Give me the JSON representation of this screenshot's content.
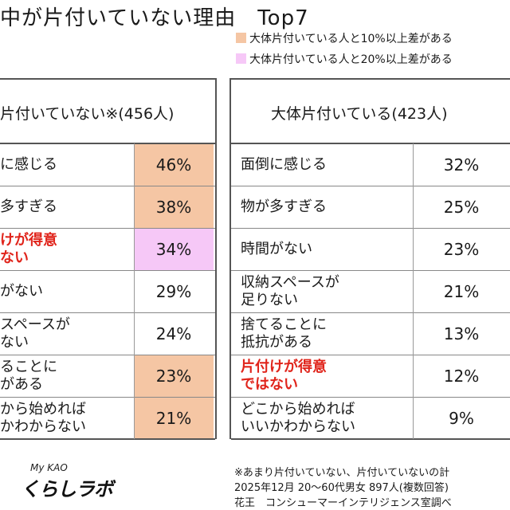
{
  "title": "中が片付いていない理由　Top7",
  "legend": [
    {
      "label": "大体片付いている人と10%以上差がある",
      "color": "#f5c6a4"
    },
    {
      "label": "大体片付いている人と20%以上差がある",
      "color": "#f6c8f7"
    }
  ],
  "chart_data": {
    "type": "table",
    "columns": [
      {
        "header": "片付いていない※(456人)",
        "rows": [
          {
            "reason": [
              "に感じる"
            ],
            "value": "46%",
            "highlight": "10"
          },
          {
            "reason": [
              "多すぎる"
            ],
            "value": "38%",
            "highlight": "10"
          },
          {
            "reason": [
              "けが得意",
              "ない"
            ],
            "value": "34%",
            "highlight": "20",
            "red": true
          },
          {
            "reason": [
              "がない"
            ],
            "value": "29%",
            "highlight": ""
          },
          {
            "reason": [
              "スペースが",
              "ない"
            ],
            "value": "24%",
            "highlight": ""
          },
          {
            "reason": [
              "ることに",
              "がある"
            ],
            "value": "23%",
            "highlight": "10"
          },
          {
            "reason": [
              "から始めれば",
              "かわからない"
            ],
            "value": "21%",
            "highlight": "10"
          }
        ]
      },
      {
        "header": "大体片付いている(423人)",
        "rows": [
          {
            "reason": [
              "面倒に感じる"
            ],
            "value": "32%"
          },
          {
            "reason": [
              "物が多すぎる"
            ],
            "value": "25%"
          },
          {
            "reason": [
              "時間がない"
            ],
            "value": "23%"
          },
          {
            "reason": [
              "収納スペースが",
              "足りない"
            ],
            "value": "21%"
          },
          {
            "reason": [
              "捨てることに",
              "抵抗がある"
            ],
            "value": "13%"
          },
          {
            "reason": [
              "片付けが得意",
              "ではない"
            ],
            "value": "12%",
            "red": true
          },
          {
            "reason": [
              "どこから始めれば",
              "いいかわからない"
            ],
            "value": "9%"
          }
        ]
      }
    ]
  },
  "footnotes": [
    "※あまり片付いていない、片付いていないの計",
    "2025年12月 20～60代男女 897人(複数回答)",
    "花王　コンシューマーインテリジェンス室調べ"
  ],
  "logo": {
    "top": "My KAO",
    "main": "くらしラボ"
  }
}
